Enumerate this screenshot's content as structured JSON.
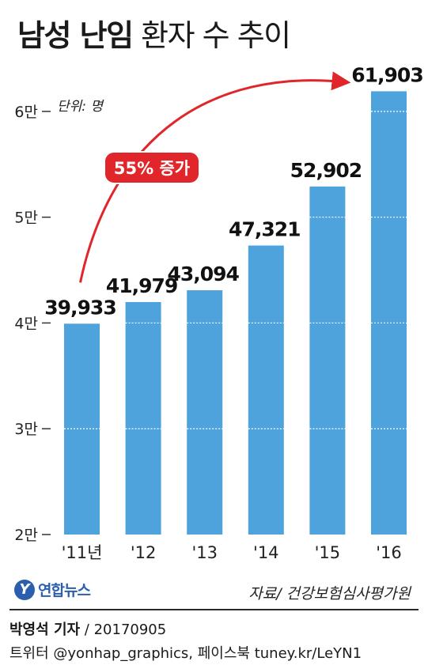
{
  "title_bold": "남성 난임",
  "title_light": "환자 수 추이",
  "unit": "단위: 명",
  "source": "자료/ 건강보험심사평가원",
  "logo": {
    "mark": "Y",
    "text": "연합뉴스"
  },
  "byline": {
    "name": "박영석 기자",
    "sep": " / ",
    "date": "20170905"
  },
  "social": "트위터 @yonhap_graphics, 페이스북 tuney.kr/LeYN1",
  "colors": {
    "bar": "#4ea3dc",
    "arrow": "#e0252b",
    "text": "#1a1a1a"
  },
  "chart_data": {
    "type": "bar",
    "categories": [
      "'11년",
      "'12",
      "'13",
      "'14",
      "'15",
      "'16"
    ],
    "values": [
      39933,
      41979,
      43094,
      47321,
      52902,
      61903
    ],
    "value_labels": [
      "39,933",
      "41,979",
      "43,094",
      "47,321",
      "52,902",
      "61,903"
    ],
    "ylim": [
      20000,
      65000
    ],
    "yticks": [
      20000,
      30000,
      40000,
      50000,
      60000
    ],
    "ytick_labels": [
      "2만",
      "3만",
      "4만",
      "5만",
      "6만"
    ],
    "gridlines": "dotted-white-on-bars",
    "annotation": {
      "text": "55% 증가",
      "from_index": 0,
      "to_index": 5
    }
  }
}
